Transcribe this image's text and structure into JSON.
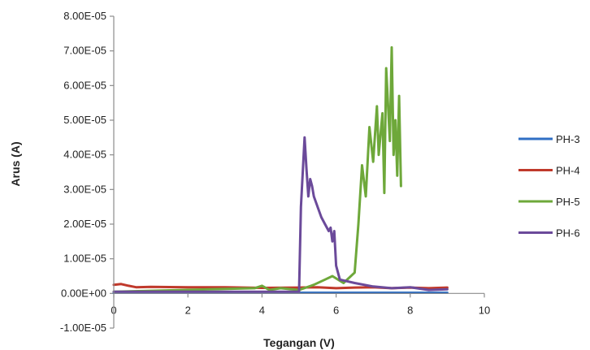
{
  "chart_data": {
    "type": "line",
    "xlabel": "Tegangan (V)",
    "ylabel": "Arus (A)",
    "xlim": [
      0,
      10
    ],
    "ylim": [
      -1e-05,
      8e-05
    ],
    "x_ticks": [
      0,
      2,
      4,
      6,
      8,
      10
    ],
    "x_tick_labels": [
      "0",
      "2",
      "4",
      "6",
      "8",
      "10"
    ],
    "y_ticks": [
      -1e-05,
      0,
      1e-05,
      2e-05,
      3e-05,
      4e-05,
      5e-05,
      6e-05,
      7e-05,
      8e-05
    ],
    "y_tick_labels": [
      "-1.00E-05",
      "0.00E+00",
      "1.00E-05",
      "2.00E-05",
      "3.00E-05",
      "4.00E-05",
      "5.00E-05",
      "6.00E-05",
      "7.00E-05",
      "8.00E-05"
    ],
    "grid": false,
    "legend_position": "right",
    "series": [
      {
        "name": "PH-3",
        "color": "#2f6fc4",
        "x": [
          0,
          1,
          2,
          3,
          4,
          5,
          6,
          7,
          8,
          9
        ],
        "y": [
          2e-07,
          2e-07,
          2e-07,
          2e-07,
          2e-07,
          2e-07,
          2e-07,
          2e-07,
          2e-07,
          2e-07
        ]
      },
      {
        "name": "PH-4",
        "color": "#c0392b",
        "x": [
          0,
          0.2,
          0.4,
          0.6,
          1,
          2,
          3,
          4,
          5,
          5.5,
          6,
          6.5,
          7,
          7.5,
          8,
          8.5,
          9
        ],
        "y": [
          2.5e-06,
          2.7e-06,
          2.2e-06,
          1.8e-06,
          1.9e-06,
          1.8e-06,
          1.8e-06,
          1.6e-06,
          1.7e-06,
          1.8e-06,
          1.5e-06,
          1.7e-06,
          1.8e-06,
          1.5e-06,
          1.7e-06,
          1.5e-06,
          1.7e-06
        ]
      },
      {
        "name": "PH-5",
        "color": "#6ea83a",
        "x": [
          0,
          3.8,
          4,
          4.2,
          4.5,
          5,
          5.4,
          5.7,
          5.9,
          6.2,
          6.5,
          6.6,
          6.7,
          6.8,
          6.9,
          7.0,
          7.1,
          7.15,
          7.25,
          7.3,
          7.35,
          7.45,
          7.5,
          7.55,
          7.6,
          7.65,
          7.7,
          7.75
        ],
        "y": [
          5e-07,
          1.5e-06,
          2.2e-06,
          1e-06,
          1.5e-06,
          1e-06,
          2.5e-06,
          4e-06,
          5e-06,
          3e-06,
          6e-06,
          2e-05,
          3.7e-05,
          2.8e-05,
          4.8e-05,
          3.8e-05,
          5.4e-05,
          4e-05,
          5.2e-05,
          2.9e-05,
          6.5e-05,
          4.4e-05,
          7.1e-05,
          4e-05,
          5e-05,
          3.4e-05,
          5.7e-05,
          3.1e-05
        ]
      },
      {
        "name": "PH-6",
        "color": "#6b4a9a",
        "x": [
          0,
          5.0,
          5.05,
          5.15,
          5.2,
          5.25,
          5.3,
          5.35,
          5.4,
          5.5,
          5.6,
          5.7,
          5.8,
          5.85,
          5.9,
          5.95,
          6.0,
          6.1,
          6.5,
          7,
          7.5,
          8,
          8.5,
          9
        ],
        "y": [
          5e-07,
          5e-07,
          2.5e-05,
          4.5e-05,
          3.6e-05,
          2.8e-05,
          3.3e-05,
          3.1e-05,
          2.8e-05,
          2.5e-05,
          2.2e-05,
          2e-05,
          1.8e-05,
          1.9e-05,
          1.5e-05,
          1.8e-05,
          8e-06,
          4e-06,
          3e-06,
          2e-06,
          1.5e-06,
          1.8e-06,
          1e-06,
          1.2e-06
        ]
      }
    ]
  }
}
